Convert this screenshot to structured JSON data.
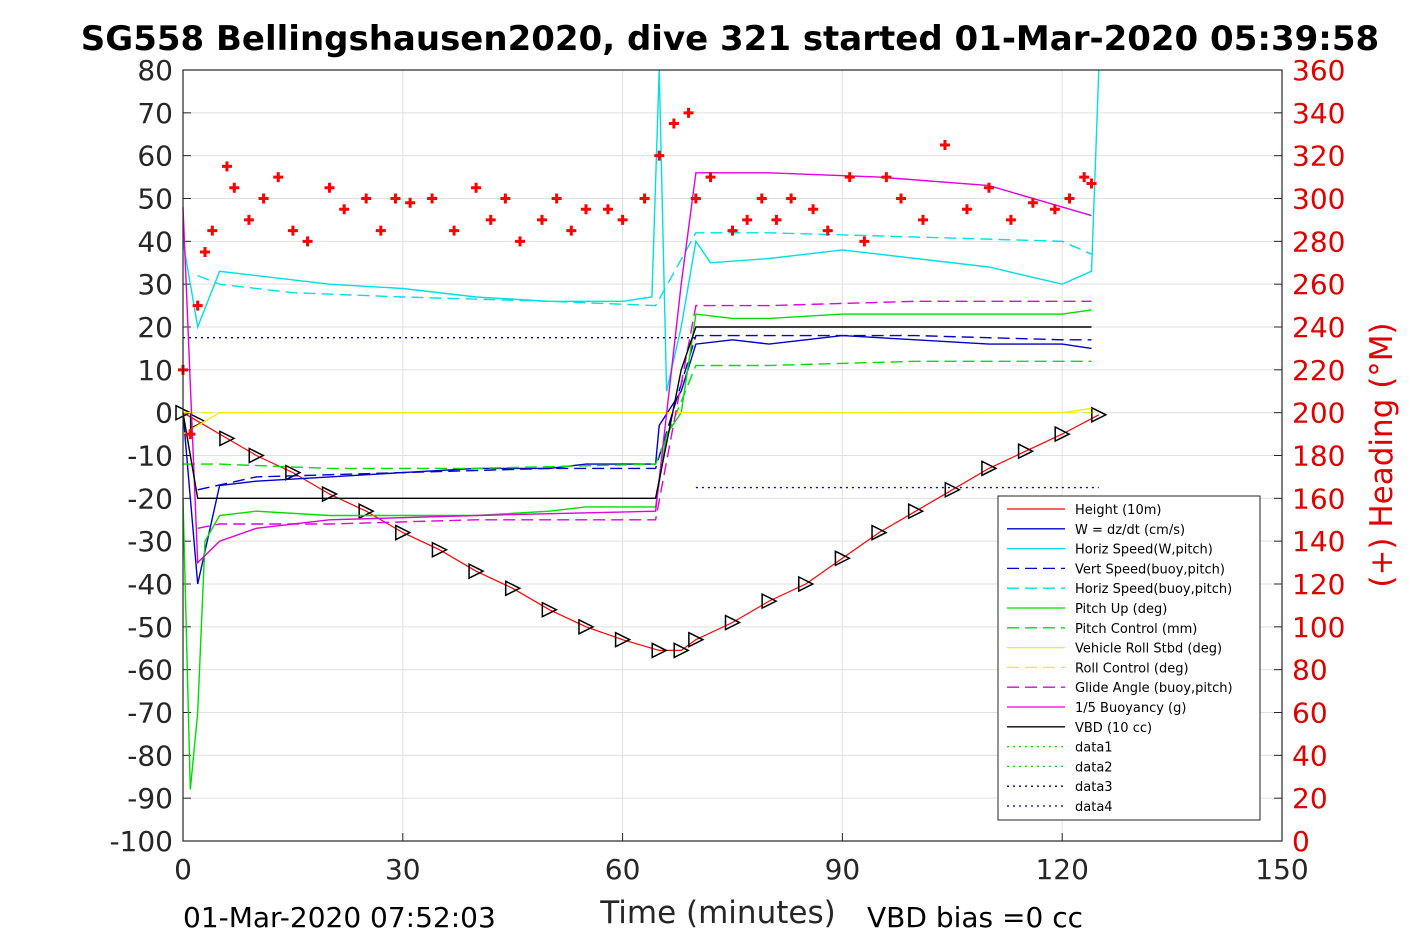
{
  "chart_data": {
    "type": "line",
    "title": "SG558 Bellingshausen2020, dive 321 started 01-Mar-2020 05:39:58",
    "xlabel": "Time (minutes)",
    "ylabel_right": "(+) Heading (°M)",
    "footer_left": "01-Mar-2020 07:52:03",
    "footer_right": "VBD bias =0 cc",
    "xlim": [
      0,
      150
    ],
    "ylim": [
      -100,
      80
    ],
    "ylim_right": [
      0,
      360
    ],
    "xticks": [
      "0",
      "30",
      "60",
      "90",
      "120",
      "150"
    ],
    "yticks_left": [
      "80",
      "70",
      "60",
      "50",
      "40",
      "30",
      "20",
      "10",
      "0",
      "-10",
      "-20",
      "-30",
      "-40",
      "-50",
      "-60",
      "-70",
      "-80",
      "-90",
      "-100"
    ],
    "yticks_right": [
      "360",
      "340",
      "320",
      "300",
      "280",
      "260",
      "240",
      "220",
      "200",
      "180",
      "160",
      "140",
      "120",
      "100",
      "80",
      "60",
      "40",
      "20",
      "0"
    ],
    "grid": true,
    "legend_position": "bottom-right",
    "legend": [
      {
        "name": "Height (10m)",
        "color": "#ff0000",
        "dash": "solid"
      },
      {
        "name": "W = dz/dt (cm/s)",
        "color": "#0000cc",
        "dash": "solid"
      },
      {
        "name": "Horiz Speed(W,pitch)",
        "color": "#00e0e0",
        "dash": "solid"
      },
      {
        "name": "Vert Speed(buoy,pitch)",
        "color": "#0000cc",
        "dash": "dash"
      },
      {
        "name": "Horiz Speed(buoy,pitch)",
        "color": "#00e0e0",
        "dash": "dash"
      },
      {
        "name": "Pitch Up (deg)",
        "color": "#00dd00",
        "dash": "solid"
      },
      {
        "name": "Pitch Control (mm)",
        "color": "#00dd00",
        "dash": "dash"
      },
      {
        "name": "Vehicle Roll Stbd (deg)",
        "color": "#f0f000",
        "dash": "solid"
      },
      {
        "name": "Roll Control (deg)",
        "color": "#f0f000",
        "dash": "dash"
      },
      {
        "name": "Glide Angle (buoy,pitch)",
        "color": "#e000e0",
        "dash": "dash"
      },
      {
        "name": "1/5 Buoyancy (g)",
        "color": "#e000e0",
        "dash": "solid"
      },
      {
        "name": "VBD (10 cc)",
        "color": "#000000",
        "dash": "solid"
      },
      {
        "name": "data1",
        "color": "#00dd00",
        "dash": "dot"
      },
      {
        "name": "data2",
        "color": "#00dd00",
        "dash": "dot"
      },
      {
        "name": "data3",
        "color": "#000080",
        "dash": "dot"
      },
      {
        "name": "data4",
        "color": "#0000cc",
        "dash": "dot"
      }
    ],
    "series": [
      {
        "name": "Height (10m)",
        "axis": "left",
        "x": [
          0,
          2,
          6,
          10,
          15,
          20,
          25,
          30,
          35,
          40,
          45,
          50,
          55,
          60,
          65,
          68,
          70,
          75,
          80,
          85,
          90,
          95,
          100,
          105,
          110,
          115,
          120,
          125
        ],
        "y": [
          0,
          -2,
          -6,
          -10,
          -14,
          -19,
          -23,
          -28,
          -32,
          -37,
          -41,
          -46,
          -50,
          -53,
          -55.5,
          -55.5,
          -53,
          -49,
          -44,
          -40,
          -34,
          -28,
          -23,
          -18,
          -13,
          -9,
          -5,
          -0.5
        ]
      },
      {
        "name": "W = dz/dt (cm/s)",
        "axis": "left",
        "x": [
          0,
          2,
          5,
          10,
          20,
          30,
          40,
          50,
          55,
          64.5,
          65,
          68,
          70,
          75,
          80,
          90,
          100,
          110,
          120,
          124
        ],
        "y": [
          0,
          -40,
          -17,
          -16,
          -15,
          -14,
          -13,
          -13,
          -12,
          -12,
          -3,
          5,
          16,
          17,
          16,
          18,
          17,
          16,
          16,
          15
        ]
      },
      {
        "name": "Horiz Speed(W,pitch)",
        "axis": "left",
        "x": [
          0,
          2,
          5,
          10,
          20,
          30,
          40,
          50,
          60,
          64,
          65,
          66,
          68,
          70,
          72,
          80,
          90,
          100,
          110,
          120,
          124,
          125
        ],
        "y": [
          40,
          20,
          33,
          32,
          30,
          29,
          27,
          26,
          26,
          27,
          80,
          5,
          20,
          40,
          35,
          36,
          38,
          36,
          34,
          30,
          33,
          80
        ]
      },
      {
        "name": "Vert Speed(buoy,pitch)",
        "axis": "left",
        "x": [
          2,
          10,
          30,
          50,
          64.5,
          70,
          80,
          100,
          120,
          124
        ],
        "y": [
          -18,
          -15,
          -14,
          -13,
          -13,
          18,
          18,
          18,
          17,
          17
        ]
      },
      {
        "name": "Horiz Speed(buoy,pitch)",
        "axis": "left",
        "x": [
          2,
          5,
          15,
          30,
          50,
          64.5,
          70,
          80,
          100,
          120,
          124
        ],
        "y": [
          32,
          30,
          28,
          27,
          26,
          25,
          42,
          42,
          41,
          40,
          37
        ]
      },
      {
        "name": "Pitch Up (deg)",
        "axis": "left",
        "x": [
          0,
          1,
          2,
          3,
          5,
          10,
          20,
          30,
          40,
          50,
          55,
          60,
          64.5,
          66,
          68,
          70,
          75,
          80,
          90,
          100,
          110,
          120,
          124
        ],
        "y": [
          -20,
          -88,
          -70,
          -30,
          -24,
          -23,
          -24,
          -24,
          -24,
          -23,
          -22,
          -22,
          -22,
          -5,
          0,
          23,
          22,
          22,
          23,
          23,
          23,
          23,
          24
        ]
      },
      {
        "name": "Pitch Control (mm)",
        "axis": "left",
        "x": [
          0,
          5,
          20,
          40,
          64.5,
          70,
          80,
          100,
          124
        ],
        "y": [
          -12,
          -12,
          -13,
          -13,
          -12,
          11,
          11,
          12,
          12
        ]
      },
      {
        "name": "Vehicle Roll Stbd (deg)",
        "axis": "left",
        "x": [
          0,
          5,
          10,
          20,
          30,
          40,
          50,
          60,
          64,
          70,
          80,
          90,
          100,
          110,
          120,
          124
        ],
        "y": [
          -5,
          0,
          0,
          0,
          0,
          0,
          0,
          0,
          0,
          0,
          0,
          0,
          0,
          0,
          0,
          1
        ]
      },
      {
        "name": "Roll Control (deg)",
        "axis": "left",
        "x": [
          0,
          10,
          30,
          50,
          64,
          80,
          100,
          124
        ],
        "y": [
          0,
          0,
          0,
          0,
          0,
          0,
          0,
          0
        ]
      },
      {
        "name": "Glide Angle (buoy,pitch)",
        "axis": "left",
        "x": [
          2,
          5,
          20,
          40,
          64.5,
          70,
          80,
          100,
          124
        ],
        "y": [
          -27,
          -26,
          -26,
          -25,
          -25,
          25,
          25,
          26,
          26
        ]
      },
      {
        "name": "1/5 Buoyancy (g)",
        "axis": "left",
        "x": [
          0,
          2,
          5,
          10,
          20,
          40,
          64.5,
          68,
          70,
          80,
          95,
          110,
          124
        ],
        "y": [
          48,
          -35,
          -30,
          -27,
          -25,
          -24,
          -23,
          30,
          56,
          56,
          55,
          53,
          46
        ]
      },
      {
        "name": "VBD (10 cc)",
        "axis": "left",
        "x": [
          0,
          2,
          5,
          64.5,
          68,
          70,
          80,
          100,
          124
        ],
        "y": [
          0,
          -20,
          -20,
          -20,
          10,
          20,
          20,
          20,
          20
        ]
      },
      {
        "name": "data3",
        "axis": "left",
        "x": [
          0,
          70
        ],
        "y": [
          17.5,
          17.5
        ]
      },
      {
        "name": "data4",
        "axis": "left",
        "x": [
          70,
          125
        ],
        "y": [
          -17.5,
          -17.5
        ]
      },
      {
        "name": "Heading",
        "axis": "right",
        "x": [
          0,
          1,
          2,
          3,
          4,
          6,
          7,
          9,
          11,
          13,
          15,
          17,
          20,
          22,
          25,
          27,
          29,
          31,
          34,
          37,
          40,
          42,
          44,
          46,
          49,
          51,
          53,
          55,
          58,
          60,
          63,
          65,
          67,
          69,
          70,
          72,
          75,
          77,
          79,
          81,
          83,
          86,
          88,
          91,
          93,
          96,
          98,
          101,
          104,
          107,
          110,
          113,
          116,
          119,
          121,
          123,
          124
        ],
        "y": [
          220,
          190,
          250,
          275,
          285,
          315,
          305,
          290,
          300,
          310,
          285,
          280,
          305,
          295,
          300,
          285,
          300,
          298,
          300,
          285,
          305,
          290,
          300,
          280,
          290,
          300,
          285,
          295,
          295,
          290,
          300,
          320,
          335,
          340,
          300,
          310,
          285,
          290,
          300,
          290,
          300,
          295,
          285,
          310,
          280,
          310,
          300,
          290,
          325,
          295,
          305,
          290,
          298,
          295,
          300,
          310,
          307
        ]
      }
    ]
  }
}
